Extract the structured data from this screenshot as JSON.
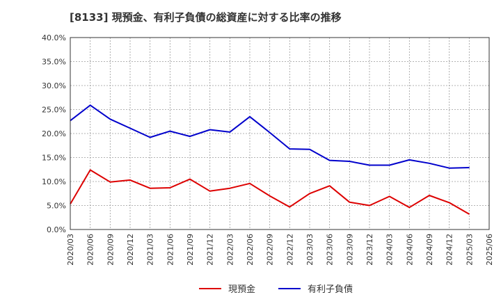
{
  "chart_data": {
    "type": "line",
    "title": "[8133]  現預金、有利子負債の総資産に対する比率の推移",
    "xlabel": "",
    "ylabel": "",
    "ylim": [
      0,
      40
    ],
    "y_ticks": [
      "0.0%",
      "5.0%",
      "10.0%",
      "15.0%",
      "20.0%",
      "25.0%",
      "30.0%",
      "35.0%",
      "40.0%"
    ],
    "categories": [
      "2020/03",
      "2020/06",
      "2020/09",
      "2020/12",
      "2021/03",
      "2021/06",
      "2021/09",
      "2021/12",
      "2022/03",
      "2022/06",
      "2022/09",
      "2022/12",
      "2023/03",
      "2023/06",
      "2023/09",
      "2023/12",
      "2024/03",
      "2024/06",
      "2024/09",
      "2024/12",
      "2025/03",
      "2025/06"
    ],
    "series": [
      {
        "name": "現預金",
        "color": "#dd0000",
        "values": [
          5.3,
          12.4,
          9.9,
          10.3,
          8.6,
          8.7,
          10.5,
          8.0,
          8.6,
          9.6,
          7.0,
          4.7,
          7.5,
          9.1,
          5.7,
          5.0,
          6.9,
          4.6,
          7.1,
          5.6,
          3.2,
          null
        ]
      },
      {
        "name": "有利子負債",
        "color": "#0000cc",
        "values": [
          22.7,
          25.9,
          23.0,
          21.1,
          19.2,
          20.5,
          19.4,
          20.8,
          20.3,
          23.5,
          20.2,
          16.8,
          16.7,
          14.4,
          14.2,
          13.4,
          13.4,
          14.5,
          13.8,
          12.8,
          12.9,
          null
        ]
      }
    ],
    "grid": true,
    "legend_position": "bottom"
  }
}
